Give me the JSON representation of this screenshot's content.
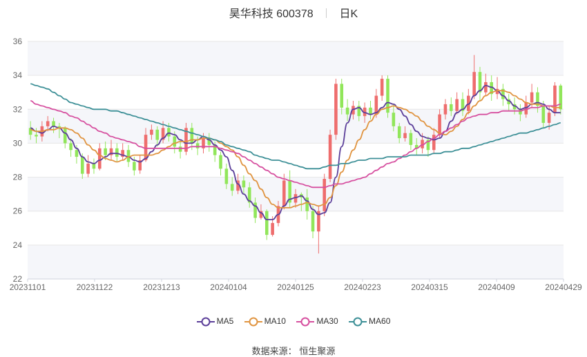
{
  "header": {
    "stock": "昊华科技 600378",
    "period": "日K"
  },
  "source": {
    "label": "数据来源：",
    "value": "恒生聚源"
  },
  "colors": {
    "up": "#ee6d6d",
    "down": "#91e65a",
    "ma5": "#5b3e99",
    "ma10": "#e09440",
    "ma30": "#d64f9f",
    "ma60": "#3c8f96",
    "grid": "#e6e6e6",
    "band": "#f5f6fa"
  },
  "chart_data": {
    "type": "candlestick",
    "x_ticks": [
      "20231101",
      "20231122",
      "20231213",
      "20240104",
      "20240125",
      "20240223",
      "20240315",
      "20240409",
      "20240429"
    ],
    "y_ticks": [
      "22",
      "24",
      "26",
      "28",
      "30",
      "32",
      "34",
      "36"
    ],
    "ylim": [
      22,
      36
    ],
    "series": [
      {
        "name": "MA5",
        "key": "ma5",
        "values": [
          30.9,
          30.7,
          30.6,
          30.8,
          31.0,
          30.9,
          30.6,
          30.2,
          29.7,
          29.2,
          28.9,
          28.8,
          29.0,
          29.2,
          29.4,
          29.4,
          29.3,
          29.2,
          29.0,
          28.9,
          29.1,
          29.5,
          29.9,
          30.3,
          30.6,
          30.5,
          30.2,
          30.0,
          30.0,
          30.2,
          30.4,
          30.2,
          29.9,
          29.6,
          29.2,
          28.4,
          27.6,
          27.0,
          26.6,
          26.3,
          25.9,
          25.5,
          25.5,
          25.8,
          26.3,
          26.7,
          26.8,
          26.9,
          26.6,
          26.1,
          25.8,
          25.9,
          26.5,
          28.0,
          29.8,
          31.2,
          32.0,
          32.1,
          31.8,
          31.7,
          31.8,
          32.1,
          32.4,
          32.3,
          32.0,
          31.6,
          31.1,
          30.7,
          30.4,
          30.3,
          30.2,
          30.3,
          30.7,
          31.3,
          31.8,
          32.0,
          32.3,
          32.8,
          33.1,
          33.4,
          33.3,
          33.1,
          32.8,
          32.5,
          32.2,
          32.0,
          32.1,
          32.3,
          32.4,
          32.3,
          32.0,
          31.8,
          31.8
        ]
      },
      {
        "name": "MA10",
        "key": "ma10",
        "values": [
          30.8,
          30.7,
          30.7,
          30.8,
          30.8,
          30.9,
          30.9,
          30.8,
          30.6,
          30.3,
          29.9,
          29.6,
          29.3,
          29.1,
          29.0,
          28.9,
          29.0,
          29.2,
          29.3,
          29.3,
          29.3,
          29.3,
          29.4,
          29.6,
          29.8,
          30.0,
          30.1,
          30.1,
          30.2,
          30.2,
          30.3,
          30.3,
          30.2,
          30.0,
          29.8,
          29.6,
          29.2,
          28.7,
          28.2,
          27.8,
          27.3,
          26.8,
          26.4,
          26.2,
          26.2,
          26.2,
          26.3,
          26.4,
          26.5,
          26.4,
          26.3,
          26.4,
          26.8,
          27.5,
          28.3,
          29.0,
          29.6,
          30.2,
          30.8,
          31.3,
          31.7,
          32.0,
          32.1,
          32.2,
          32.1,
          32.0,
          31.8,
          31.6,
          31.3,
          31.0,
          30.8,
          30.6,
          30.5,
          30.7,
          31.0,
          31.4,
          31.8,
          32.2,
          32.5,
          32.8,
          33.0,
          33.1,
          33.1,
          33.0,
          32.8,
          32.6,
          32.4,
          32.3,
          32.3,
          32.2,
          32.2,
          32.1,
          32.1
        ]
      },
      {
        "name": "MA30",
        "key": "ma30",
        "values": [
          32.5,
          32.3,
          32.2,
          32.1,
          32.0,
          31.9,
          31.8,
          31.6,
          31.5,
          31.3,
          31.1,
          30.9,
          30.7,
          30.6,
          30.4,
          30.3,
          30.2,
          30.1,
          30.0,
          29.8,
          29.7,
          29.7,
          29.7,
          29.7,
          29.7,
          29.7,
          29.7,
          29.7,
          29.8,
          29.8,
          29.8,
          29.8,
          29.8,
          29.7,
          29.6,
          29.5,
          29.4,
          29.2,
          29.0,
          28.8,
          28.6,
          28.4,
          28.2,
          28.0,
          27.9,
          27.8,
          27.7,
          27.6,
          27.5,
          27.4,
          27.4,
          27.4,
          27.5,
          27.6,
          27.6,
          27.7,
          27.8,
          27.9,
          28.0,
          28.2,
          28.4,
          28.6,
          28.8,
          28.9,
          29.1,
          29.3,
          29.5,
          29.7,
          29.9,
          30.1,
          30.3,
          30.5,
          30.7,
          30.9,
          31.1,
          31.3,
          31.5,
          31.6,
          31.7,
          31.7,
          31.8,
          31.8,
          31.9,
          31.9,
          31.9,
          31.9,
          32.0,
          32.1,
          32.1,
          32.2,
          32.2,
          32.2,
          32.3
        ]
      },
      {
        "name": "MA60",
        "key": "ma60",
        "values": [
          33.5,
          33.4,
          33.3,
          33.2,
          33.0,
          32.8,
          32.6,
          32.4,
          32.3,
          32.2,
          32.1,
          32.0,
          32.0,
          32.0,
          31.9,
          31.9,
          31.8,
          31.7,
          31.6,
          31.5,
          31.4,
          31.3,
          31.2,
          31.1,
          31.0,
          30.9,
          30.8,
          30.7,
          30.6,
          30.5,
          30.4,
          30.3,
          30.2,
          30.1,
          29.9,
          29.8,
          29.7,
          29.6,
          29.5,
          29.3,
          29.2,
          29.1,
          29.0,
          29.0,
          28.9,
          28.8,
          28.7,
          28.6,
          28.5,
          28.5,
          28.5,
          28.6,
          28.7,
          28.7,
          28.8,
          28.8,
          28.9,
          29.0,
          29.0,
          29.1,
          29.1,
          29.1,
          29.2,
          29.2,
          29.2,
          29.2,
          29.3,
          29.3,
          29.3,
          29.3,
          29.4,
          29.4,
          29.5,
          29.5,
          29.6,
          29.7,
          29.7,
          29.8,
          29.9,
          30.0,
          30.1,
          30.2,
          30.3,
          30.4,
          30.5,
          30.6,
          30.6,
          30.7,
          30.8,
          30.9,
          31.0,
          31.1,
          31.2
        ]
      }
    ],
    "candles": [
      [
        30.9,
        30.5,
        31.3,
        30.2
      ],
      [
        30.5,
        30.4,
        30.9,
        30.0
      ],
      [
        30.4,
        31.0,
        31.3,
        30.1
      ],
      [
        31.0,
        31.3,
        31.6,
        30.7
      ],
      [
        31.3,
        31.0,
        31.5,
        30.6
      ],
      [
        31.0,
        30.9,
        31.2,
        30.3
      ],
      [
        30.9,
        30.0,
        31.0,
        29.7
      ],
      [
        30.0,
        29.6,
        30.3,
        29.2
      ],
      [
        29.6,
        29.2,
        29.9,
        28.8
      ],
      [
        29.2,
        28.2,
        29.4,
        27.9
      ],
      [
        28.2,
        28.8,
        29.3,
        28.0
      ],
      [
        28.8,
        28.5,
        29.1,
        28.2
      ],
      [
        28.5,
        29.7,
        30.0,
        28.4
      ],
      [
        29.7,
        29.3,
        30.1,
        29.0
      ],
      [
        29.3,
        29.7,
        30.2,
        29.0
      ],
      [
        29.7,
        29.2,
        30.0,
        28.9
      ],
      [
        29.2,
        29.6,
        30.0,
        29.0
      ],
      [
        29.6,
        28.9,
        29.9,
        28.6
      ],
      [
        28.9,
        28.4,
        29.2,
        28.1
      ],
      [
        28.4,
        29.0,
        29.3,
        28.2
      ],
      [
        29.0,
        30.5,
        30.9,
        28.9
      ],
      [
        30.5,
        30.8,
        31.1,
        30.2
      ],
      [
        30.8,
        30.2,
        31.0,
        29.8
      ],
      [
        30.2,
        30.9,
        31.3,
        30.0
      ],
      [
        30.9,
        30.4,
        31.2,
        30.1
      ],
      [
        30.4,
        29.8,
        30.7,
        29.4
      ],
      [
        29.8,
        29.5,
        30.2,
        29.1
      ],
      [
        29.5,
        30.9,
        31.2,
        29.3
      ],
      [
        30.9,
        30.0,
        31.2,
        29.6
      ],
      [
        30.0,
        29.7,
        30.4,
        29.3
      ],
      [
        29.7,
        30.3,
        30.6,
        29.4
      ],
      [
        30.3,
        29.9,
        30.6,
        29.5
      ],
      [
        29.9,
        29.3,
        30.1,
        28.9
      ],
      [
        29.3,
        28.5,
        29.5,
        28.1
      ],
      [
        28.5,
        27.6,
        28.8,
        27.3
      ],
      [
        27.6,
        27.2,
        28.0,
        26.9
      ],
      [
        27.2,
        27.8,
        28.2,
        27.0
      ],
      [
        27.8,
        27.4,
        28.1,
        27.0
      ],
      [
        27.4,
        26.5,
        27.7,
        26.2
      ],
      [
        26.5,
        25.6,
        26.8,
        25.3
      ],
      [
        25.6,
        26.0,
        26.4,
        25.5
      ],
      [
        26.0,
        24.6,
        26.1,
        24.3
      ],
      [
        24.6,
        25.3,
        25.7,
        24.5
      ],
      [
        25.3,
        26.3,
        26.6,
        25.1
      ],
      [
        26.3,
        27.8,
        28.2,
        26.1
      ],
      [
        27.8,
        26.5,
        28.4,
        26.2
      ],
      [
        26.5,
        27.0,
        27.3,
        26.2
      ],
      [
        27.0,
        26.8,
        27.1,
        26.0
      ],
      [
        26.8,
        26.0,
        27.3,
        25.5
      ],
      [
        26.0,
        24.8,
        26.3,
        24.4
      ],
      [
        24.8,
        26.0,
        26.3,
        23.5
      ],
      [
        26.0,
        27.9,
        28.2,
        25.7
      ],
      [
        27.9,
        30.5,
        30.8,
        27.7
      ],
      [
        30.5,
        33.5,
        33.8,
        30.2
      ],
      [
        33.5,
        32.1,
        33.8,
        31.7
      ],
      [
        32.1,
        31.7,
        32.6,
        31.3
      ],
      [
        31.7,
        32.2,
        32.5,
        31.4
      ],
      [
        32.2,
        31.6,
        32.5,
        31.3
      ],
      [
        31.6,
        32.1,
        32.4,
        31.2
      ],
      [
        32.1,
        31.7,
        32.5,
        31.4
      ],
      [
        31.7,
        32.8,
        33.2,
        31.5
      ],
      [
        32.8,
        33.8,
        34.0,
        32.5
      ],
      [
        33.8,
        31.8,
        34.0,
        31.5
      ],
      [
        31.8,
        31.0,
        32.3,
        30.7
      ],
      [
        31.0,
        30.3,
        31.2,
        30.0
      ],
      [
        30.3,
        30.6,
        31.0,
        30.1
      ],
      [
        30.6,
        29.9,
        30.8,
        29.6
      ],
      [
        29.9,
        29.7,
        30.3,
        29.3
      ],
      [
        29.7,
        30.2,
        30.6,
        29.4
      ],
      [
        30.2,
        29.6,
        30.4,
        29.2
      ],
      [
        29.6,
        30.5,
        30.9,
        29.4
      ],
      [
        30.5,
        31.7,
        32.0,
        30.3
      ],
      [
        31.7,
        32.3,
        32.6,
        31.4
      ],
      [
        32.3,
        31.9,
        32.7,
        31.6
      ],
      [
        31.9,
        32.6,
        33.0,
        31.7
      ],
      [
        32.6,
        31.9,
        33.0,
        31.6
      ],
      [
        31.9,
        32.8,
        33.2,
        31.7
      ],
      [
        32.8,
        34.2,
        35.2,
        32.6
      ],
      [
        34.2,
        33.0,
        34.5,
        32.5
      ],
      [
        33.0,
        33.6,
        34.1,
        32.8
      ],
      [
        33.6,
        32.9,
        34.0,
        32.5
      ],
      [
        32.9,
        33.2,
        33.9,
        32.6
      ],
      [
        33.2,
        32.6,
        33.5,
        32.2
      ],
      [
        32.6,
        32.3,
        32.9,
        31.9
      ],
      [
        32.3,
        32.0,
        32.7,
        31.7
      ],
      [
        32.0,
        31.7,
        32.3,
        31.3
      ],
      [
        31.7,
        32.4,
        32.8,
        31.5
      ],
      [
        32.4,
        33.0,
        33.5,
        32.1
      ],
      [
        33.0,
        32.2,
        33.3,
        31.8
      ],
      [
        32.2,
        31.2,
        32.5,
        30.9
      ],
      [
        31.2,
        31.8,
        32.2,
        30.8
      ],
      [
        31.8,
        33.4,
        33.6,
        31.6
      ],
      [
        33.4,
        32.0,
        33.5,
        31.7
      ]
    ]
  }
}
